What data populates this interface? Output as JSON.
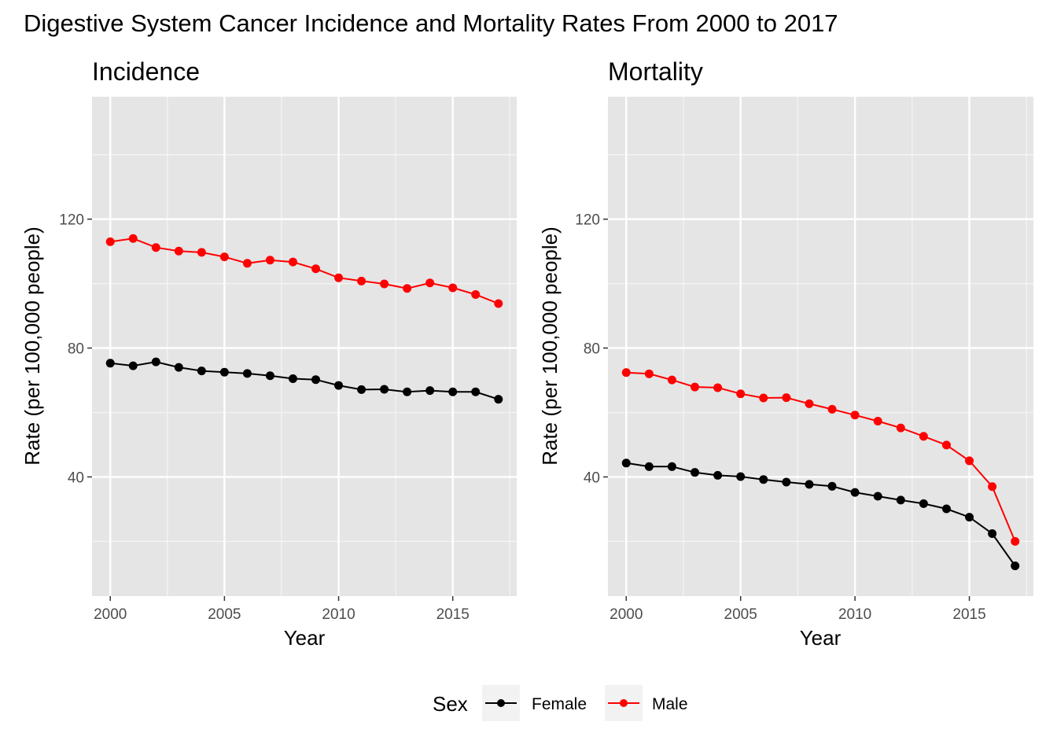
{
  "title": "Digestive System Cancer Incidence and Mortality Rates From 2000 to 2017",
  "legend": {
    "title": "Sex",
    "position": "bottom",
    "entries": [
      {
        "label": "Female",
        "color": "#000000"
      },
      {
        "label": "Male",
        "color": "#ff0000"
      }
    ]
  },
  "chart_data": [
    {
      "type": "line",
      "title": "Incidence",
      "xlabel": "Year",
      "ylabel": "Rate (per 100,000 people)",
      "x": [
        2000,
        2001,
        2002,
        2003,
        2004,
        2005,
        2006,
        2007,
        2008,
        2009,
        2010,
        2011,
        2012,
        2013,
        2014,
        2015,
        2016,
        2017
      ],
      "xlim": [
        1999.2,
        2017.8
      ],
      "ylim": [
        3,
        158
      ],
      "xticks": [
        2000,
        2005,
        2010,
        2015
      ],
      "yticks": [
        40,
        80,
        120
      ],
      "grid": true,
      "series": [
        {
          "name": "Female",
          "color": "#000000",
          "values": [
            75.3,
            74.5,
            75.7,
            74.0,
            72.9,
            72.5,
            72.1,
            71.4,
            70.5,
            70.2,
            68.4,
            67.1,
            67.2,
            66.4,
            66.8,
            66.4,
            66.4,
            64.1
          ]
        },
        {
          "name": "Male",
          "color": "#ff0000",
          "values": [
            113.0,
            114.0,
            111.2,
            110.1,
            109.7,
            108.3,
            106.3,
            107.3,
            106.7,
            104.6,
            101.8,
            100.8,
            99.9,
            98.5,
            100.2,
            98.7,
            96.6,
            93.8
          ]
        }
      ]
    },
    {
      "type": "line",
      "title": "Mortality",
      "xlabel": "Year",
      "ylabel": "Rate (per 100,000 people)",
      "x": [
        2000,
        2001,
        2002,
        2003,
        2004,
        2005,
        2006,
        2007,
        2008,
        2009,
        2010,
        2011,
        2012,
        2013,
        2014,
        2015,
        2016,
        2017
      ],
      "xlim": [
        1999.2,
        2017.8
      ],
      "ylim": [
        3,
        158
      ],
      "xticks": [
        2000,
        2005,
        2010,
        2015
      ],
      "yticks": [
        40,
        80,
        120
      ],
      "grid": true,
      "series": [
        {
          "name": "Female",
          "color": "#000000",
          "values": [
            44.3,
            43.2,
            43.2,
            41.4,
            40.5,
            40.1,
            39.2,
            38.4,
            37.7,
            37.1,
            35.2,
            34.0,
            32.8,
            31.7,
            30.1,
            27.5,
            22.4,
            12.4
          ]
        },
        {
          "name": "Male",
          "color": "#ff0000",
          "values": [
            72.4,
            72.0,
            70.1,
            67.9,
            67.7,
            65.8,
            64.5,
            64.6,
            62.7,
            61.0,
            59.2,
            57.3,
            55.2,
            52.6,
            49.9,
            45.0,
            37.0,
            20.0
          ]
        }
      ]
    }
  ]
}
